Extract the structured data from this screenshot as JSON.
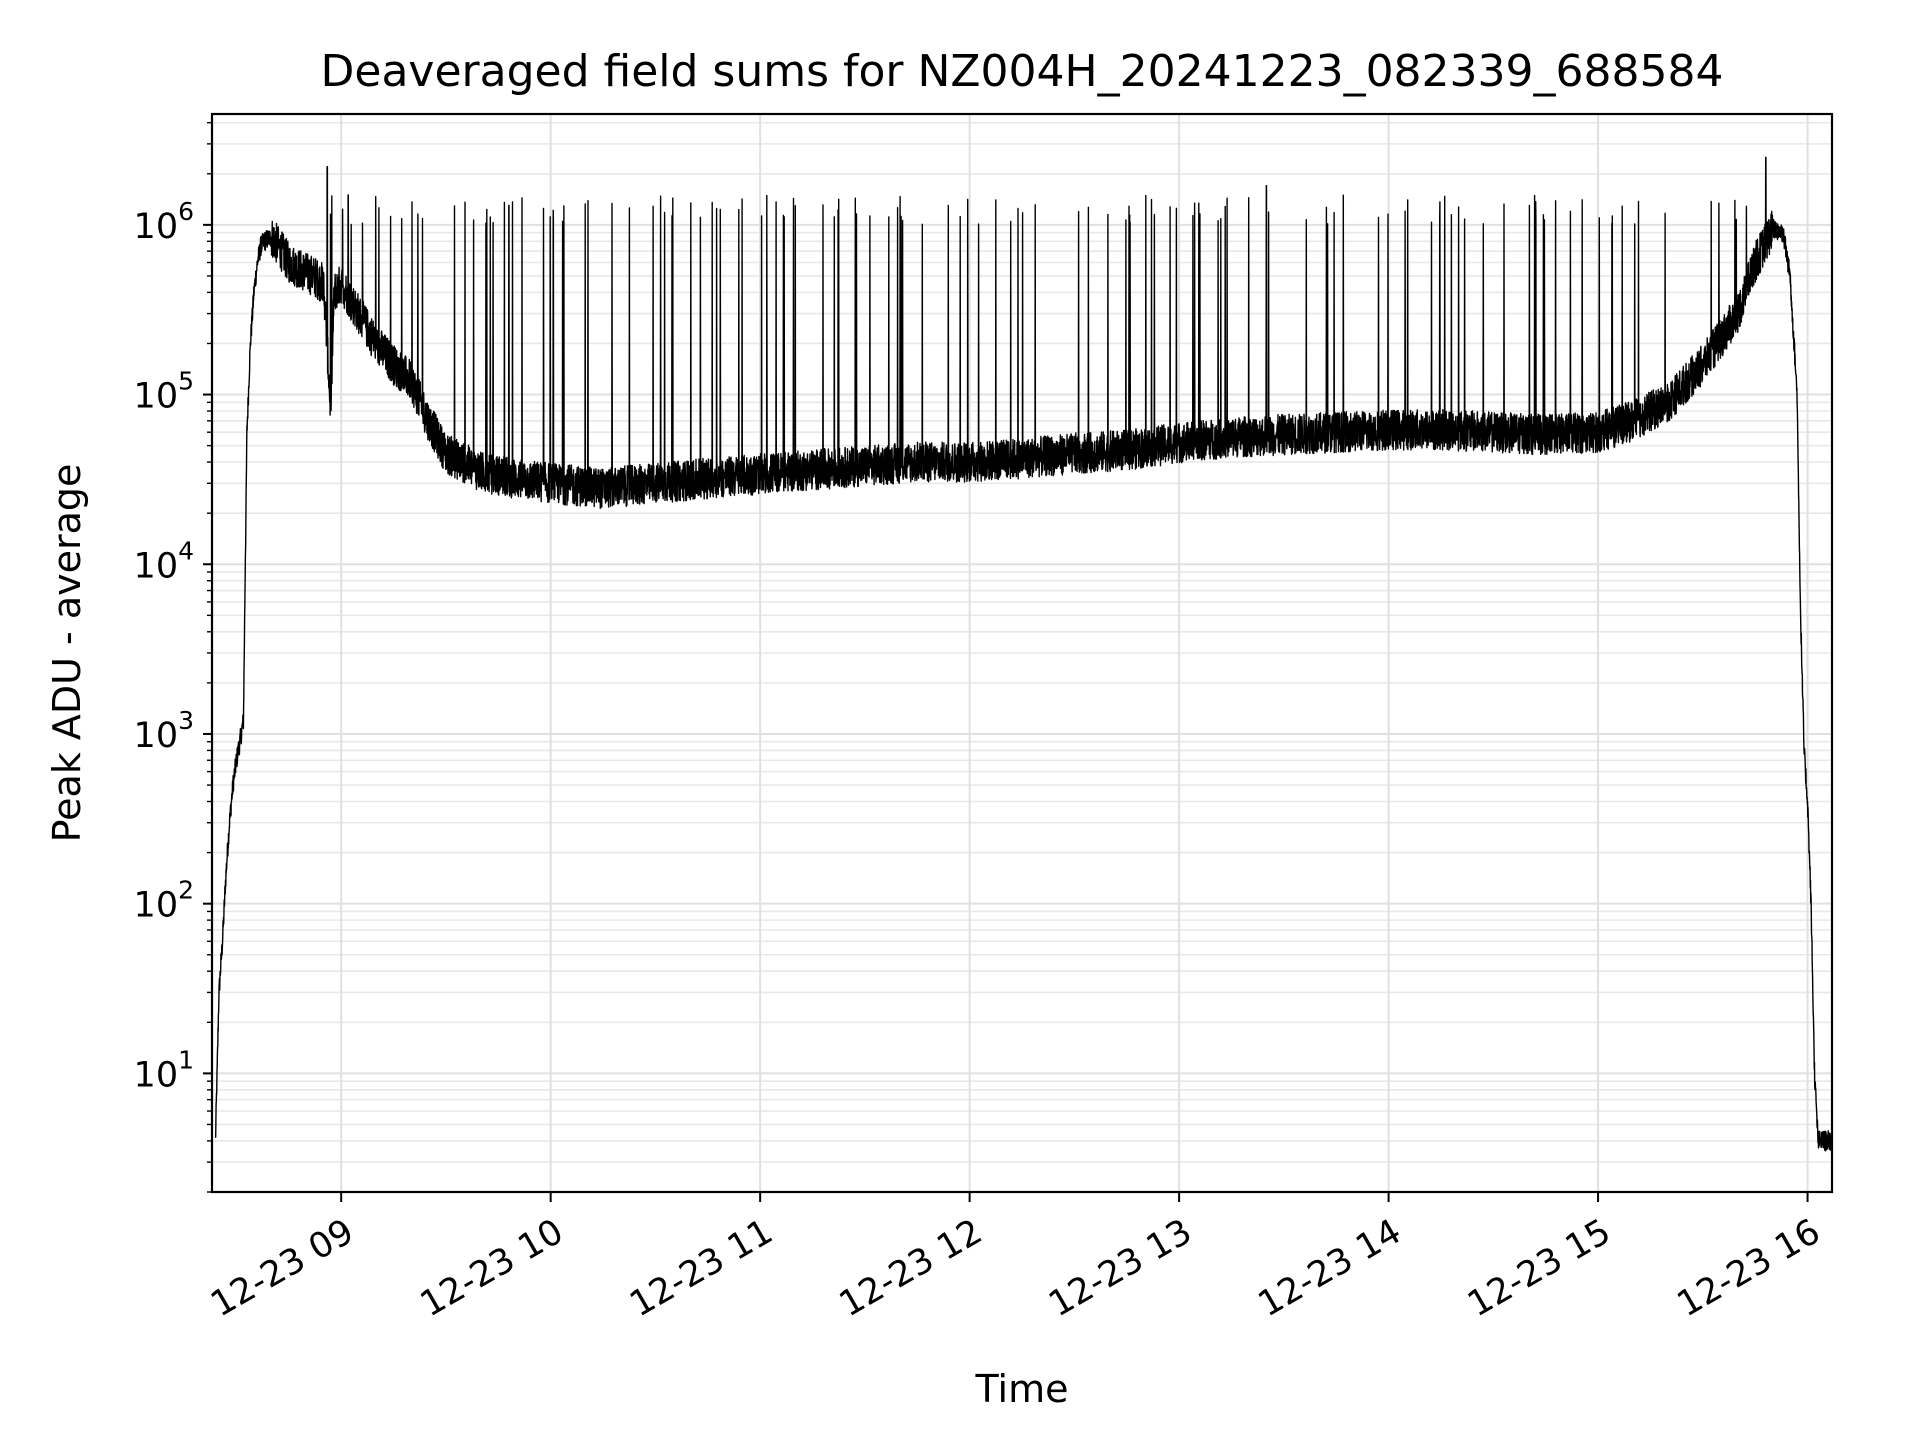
{
  "chart_data": {
    "type": "line",
    "title": "Deaveraged field sums for NZ004H_20241223_082339_688584",
    "xlabel": "Time",
    "ylabel": "Peak ADU - average",
    "yscale": "log",
    "grid": "both major and minor",
    "line_color": "#000000",
    "xlim": [
      "12-23 08:23",
      "12-23 16:07"
    ],
    "ylim": [
      2,
      4500000
    ],
    "x_ticks": [
      {
        "value": "12-23 09:00",
        "label": "12-23 09"
      },
      {
        "value": "12-23 10:00",
        "label": "12-23 10"
      },
      {
        "value": "12-23 11:00",
        "label": "12-23 11"
      },
      {
        "value": "12-23 12:00",
        "label": "12-23 12"
      },
      {
        "value": "12-23 13:00",
        "label": "12-23 13"
      },
      {
        "value": "12-23 14:00",
        "label": "12-23 14"
      },
      {
        "value": "12-23 15:00",
        "label": "12-23 15"
      },
      {
        "value": "12-23 16:00",
        "label": "12-23 16"
      }
    ],
    "y_ticks": [
      {
        "value": 10,
        "base": "10",
        "exp": "1"
      },
      {
        "value": 100,
        "base": "10",
        "exp": "2"
      },
      {
        "value": 1000,
        "base": "10",
        "exp": "3"
      },
      {
        "value": 10000,
        "base": "10",
        "exp": "4"
      },
      {
        "value": 100000,
        "base": "10",
        "exp": "5"
      },
      {
        "value": 1000000,
        "base": "10",
        "exp": "6"
      }
    ],
    "series": [
      {
        "name": "",
        "x": [
          "12-23 08:24",
          "12-23 08:25",
          "12-23 08:26",
          "12-23 08:27",
          "12-23 08:28",
          "12-23 08:29",
          "12-23 08:30",
          "12-23 08:31",
          "12-23 08:32",
          "12-23 08:33",
          "12-23 08:34",
          "12-23 08:35",
          "12-23 08:36",
          "12-23 08:37",
          "12-23 08:38",
          "12-23 08:40",
          "12-23 08:42",
          "12-23 08:45",
          "12-23 08:48",
          "12-23 08:52",
          "12-23 08:55",
          "12-23 08:57",
          "12-23 08:58",
          "12-23 09:00",
          "12-23 09:05",
          "12-23 09:10",
          "12-23 09:15",
          "12-23 09:20",
          "12-23 09:25",
          "12-23 09:30",
          "12-23 09:40",
          "12-23 09:50",
          "12-23 10:00",
          "12-23 10:15",
          "12-23 10:30",
          "12-23 10:45",
          "12-23 11:00",
          "12-23 11:15",
          "12-23 11:30",
          "12-23 11:45",
          "12-23 12:00",
          "12-23 12:15",
          "12-23 12:30",
          "12-23 12:45",
          "12-23 13:00",
          "12-23 13:15",
          "12-23 13:30",
          "12-23 13:45",
          "12-23 14:00",
          "12-23 14:15",
          "12-23 14:30",
          "12-23 14:45",
          "12-23 15:00",
          "12-23 15:10",
          "12-23 15:20",
          "12-23 15:30",
          "12-23 15:40",
          "12-23 15:45",
          "12-23 15:50",
          "12-23 15:53",
          "12-23 15:55",
          "12-23 15:57",
          "12-23 15:58",
          "12-23 15:59",
          "12-23 16:00",
          "12-23 16:01",
          "12-23 16:02",
          "12-23 16:03",
          "12-23 16:04",
          "12-23 16:05",
          "12-23 16:06",
          "12-23 16:07"
        ],
        "y": [
          4,
          30,
          60,
          150,
          300,
          500,
          700,
          900,
          1200,
          60000,
          200000,
          400000,
          600000,
          750000,
          800000,
          850000,
          750000,
          600000,
          550000,
          500000,
          450000,
          80000,
          400000,
          450000,
          300000,
          200000,
          150000,
          120000,
          70000,
          45000,
          35000,
          32000,
          30000,
          28000,
          30000,
          32000,
          34000,
          36000,
          38000,
          40000,
          40000,
          42000,
          45000,
          47000,
          52000,
          56000,
          58000,
          60000,
          62000,
          62000,
          60000,
          58000,
          60000,
          70000,
          90000,
          150000,
          300000,
          600000,
          950000,
          900000,
          500000,
          100000,
          5000,
          800,
          400,
          100,
          10,
          4,
          4,
          4,
          4,
          4
        ]
      }
    ],
    "spikes": {
      "description_level": "narrow transient spikes up to about 1000000-1500000 from baseline",
      "peak_values": [
        2200000,
        1500000,
        1300000,
        1700000,
        2500000
      ],
      "peak_times": [
        "12-23 08:56",
        "12-23 09:02",
        "12-23 09:48",
        "12-23 13:25",
        "12-23 15:48"
      ]
    }
  }
}
